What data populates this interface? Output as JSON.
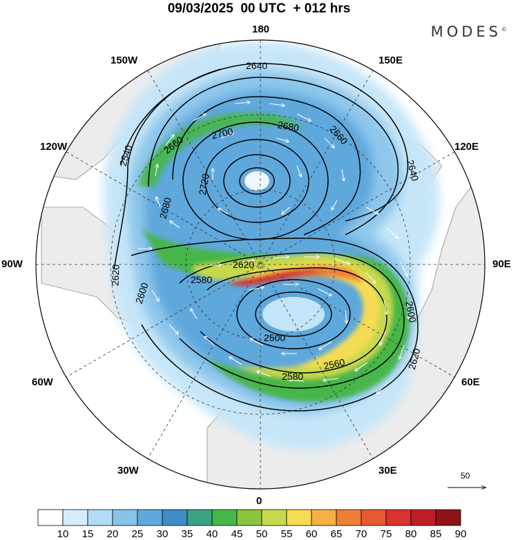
{
  "header": {
    "title": "09/03/2025  00 UTC  + 012 hrs",
    "brand": "MODES",
    "brand_mark": "©"
  },
  "map": {
    "projection": "north-polar-stereographic",
    "longitude_labels": {
      "top": "180",
      "top_left": "150W",
      "top_right": "150E",
      "upper_left": "120W",
      "upper_right": "120E",
      "left": "90W",
      "right": "90E",
      "lower_left": "60W",
      "lower_right": "60E",
      "bottom_left": "30W",
      "bottom_right": "30E",
      "bottom": "0"
    },
    "contour_labels": {
      "c1": "2640",
      "c2": "2660",
      "c3": "2700",
      "c4": "2680",
      "c5": "2660",
      "c6": "2540",
      "c7": "2720",
      "c8": "2680",
      "c9": "2640",
      "c10": "2620",
      "c11": "2620",
      "c12": "2600",
      "c13": "2580",
      "c14": "2500",
      "c15": "2560",
      "c16": "2580",
      "c17": "2600",
      "c18": "2620"
    },
    "colors": {
      "land": "#ececec",
      "ocean": "#ffffff",
      "contour": "#000000",
      "wind_arrows": "#ffffff"
    }
  },
  "vector_reference": {
    "label": "50"
  },
  "colorbar": {
    "ticks": [
      "10",
      "15",
      "20",
      "25",
      "30",
      "35",
      "40",
      "45",
      "50",
      "55",
      "60",
      "65",
      "70",
      "75",
      "80",
      "85",
      "90"
    ],
    "colors": [
      "#ffffff",
      "#d6eefc",
      "#b0dcf6",
      "#88c4ea",
      "#5fa8dc",
      "#3f8cc7",
      "#3aa383",
      "#46b648",
      "#89c53f",
      "#c6d94c",
      "#f6db55",
      "#f6b045",
      "#ef7f32",
      "#e65a34",
      "#d9322f",
      "#bf1e27",
      "#8f1219"
    ]
  }
}
